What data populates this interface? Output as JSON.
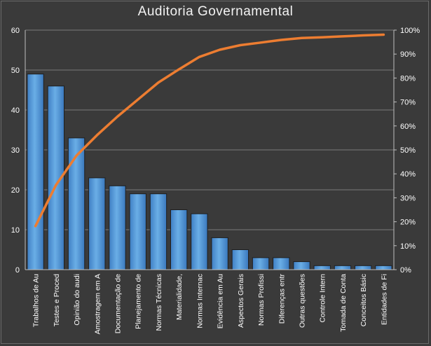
{
  "chart_data": {
    "type": "bar",
    "title": "Auditoria  Governamental",
    "categories": [
      "Trabalhos de Au",
      "Testes e Proced",
      "Opinião do audi",
      "Amostragem em A",
      "Documentação de",
      "Planejamento de",
      "Normas Técnicas",
      "Materialidade,",
      "Normas Internac",
      "Evidência em Au",
      "Aspectos Gerais",
      "Normas Profissi",
      "Diferenças entr",
      "Outras questões",
      "Controle Intern",
      "Tomada de Conta",
      "Conceitos Básic",
      "Entidades de Fi"
    ],
    "series": [
      {
        "type": "bar",
        "values": [
          49,
          46,
          33,
          23,
          21,
          19,
          19,
          15,
          14,
          8,
          5,
          3,
          3,
          2,
          1,
          1,
          1,
          1
        ]
      },
      {
        "type": "line",
        "axis": "secondary",
        "values": [
          18.2,
          35.3,
          47.6,
          56.1,
          63.9,
          71.0,
          78.1,
          83.6,
          88.8,
          91.8,
          93.7,
          94.8,
          95.9,
          96.7,
          97.0,
          97.4,
          97.8,
          98.1
        ]
      }
    ],
    "y_ticks": [
      "0",
      "10",
      "20",
      "30",
      "40",
      "50",
      "60"
    ],
    "y2_ticks": [
      "0%",
      "10%",
      "20%",
      "30%",
      "40%",
      "50%",
      "60%",
      "70%",
      "80%",
      "90%",
      "100%"
    ],
    "ylim": [
      0,
      60
    ],
    "y2lim": [
      0,
      100
    ],
    "grid": true,
    "legend": "none",
    "colors": {
      "bar": "#5b9bd5",
      "bar_dark": "#2e6eb5",
      "line": "#ed7d31",
      "grid": "#7a7a7a",
      "background": "#3a3a3a"
    }
  }
}
